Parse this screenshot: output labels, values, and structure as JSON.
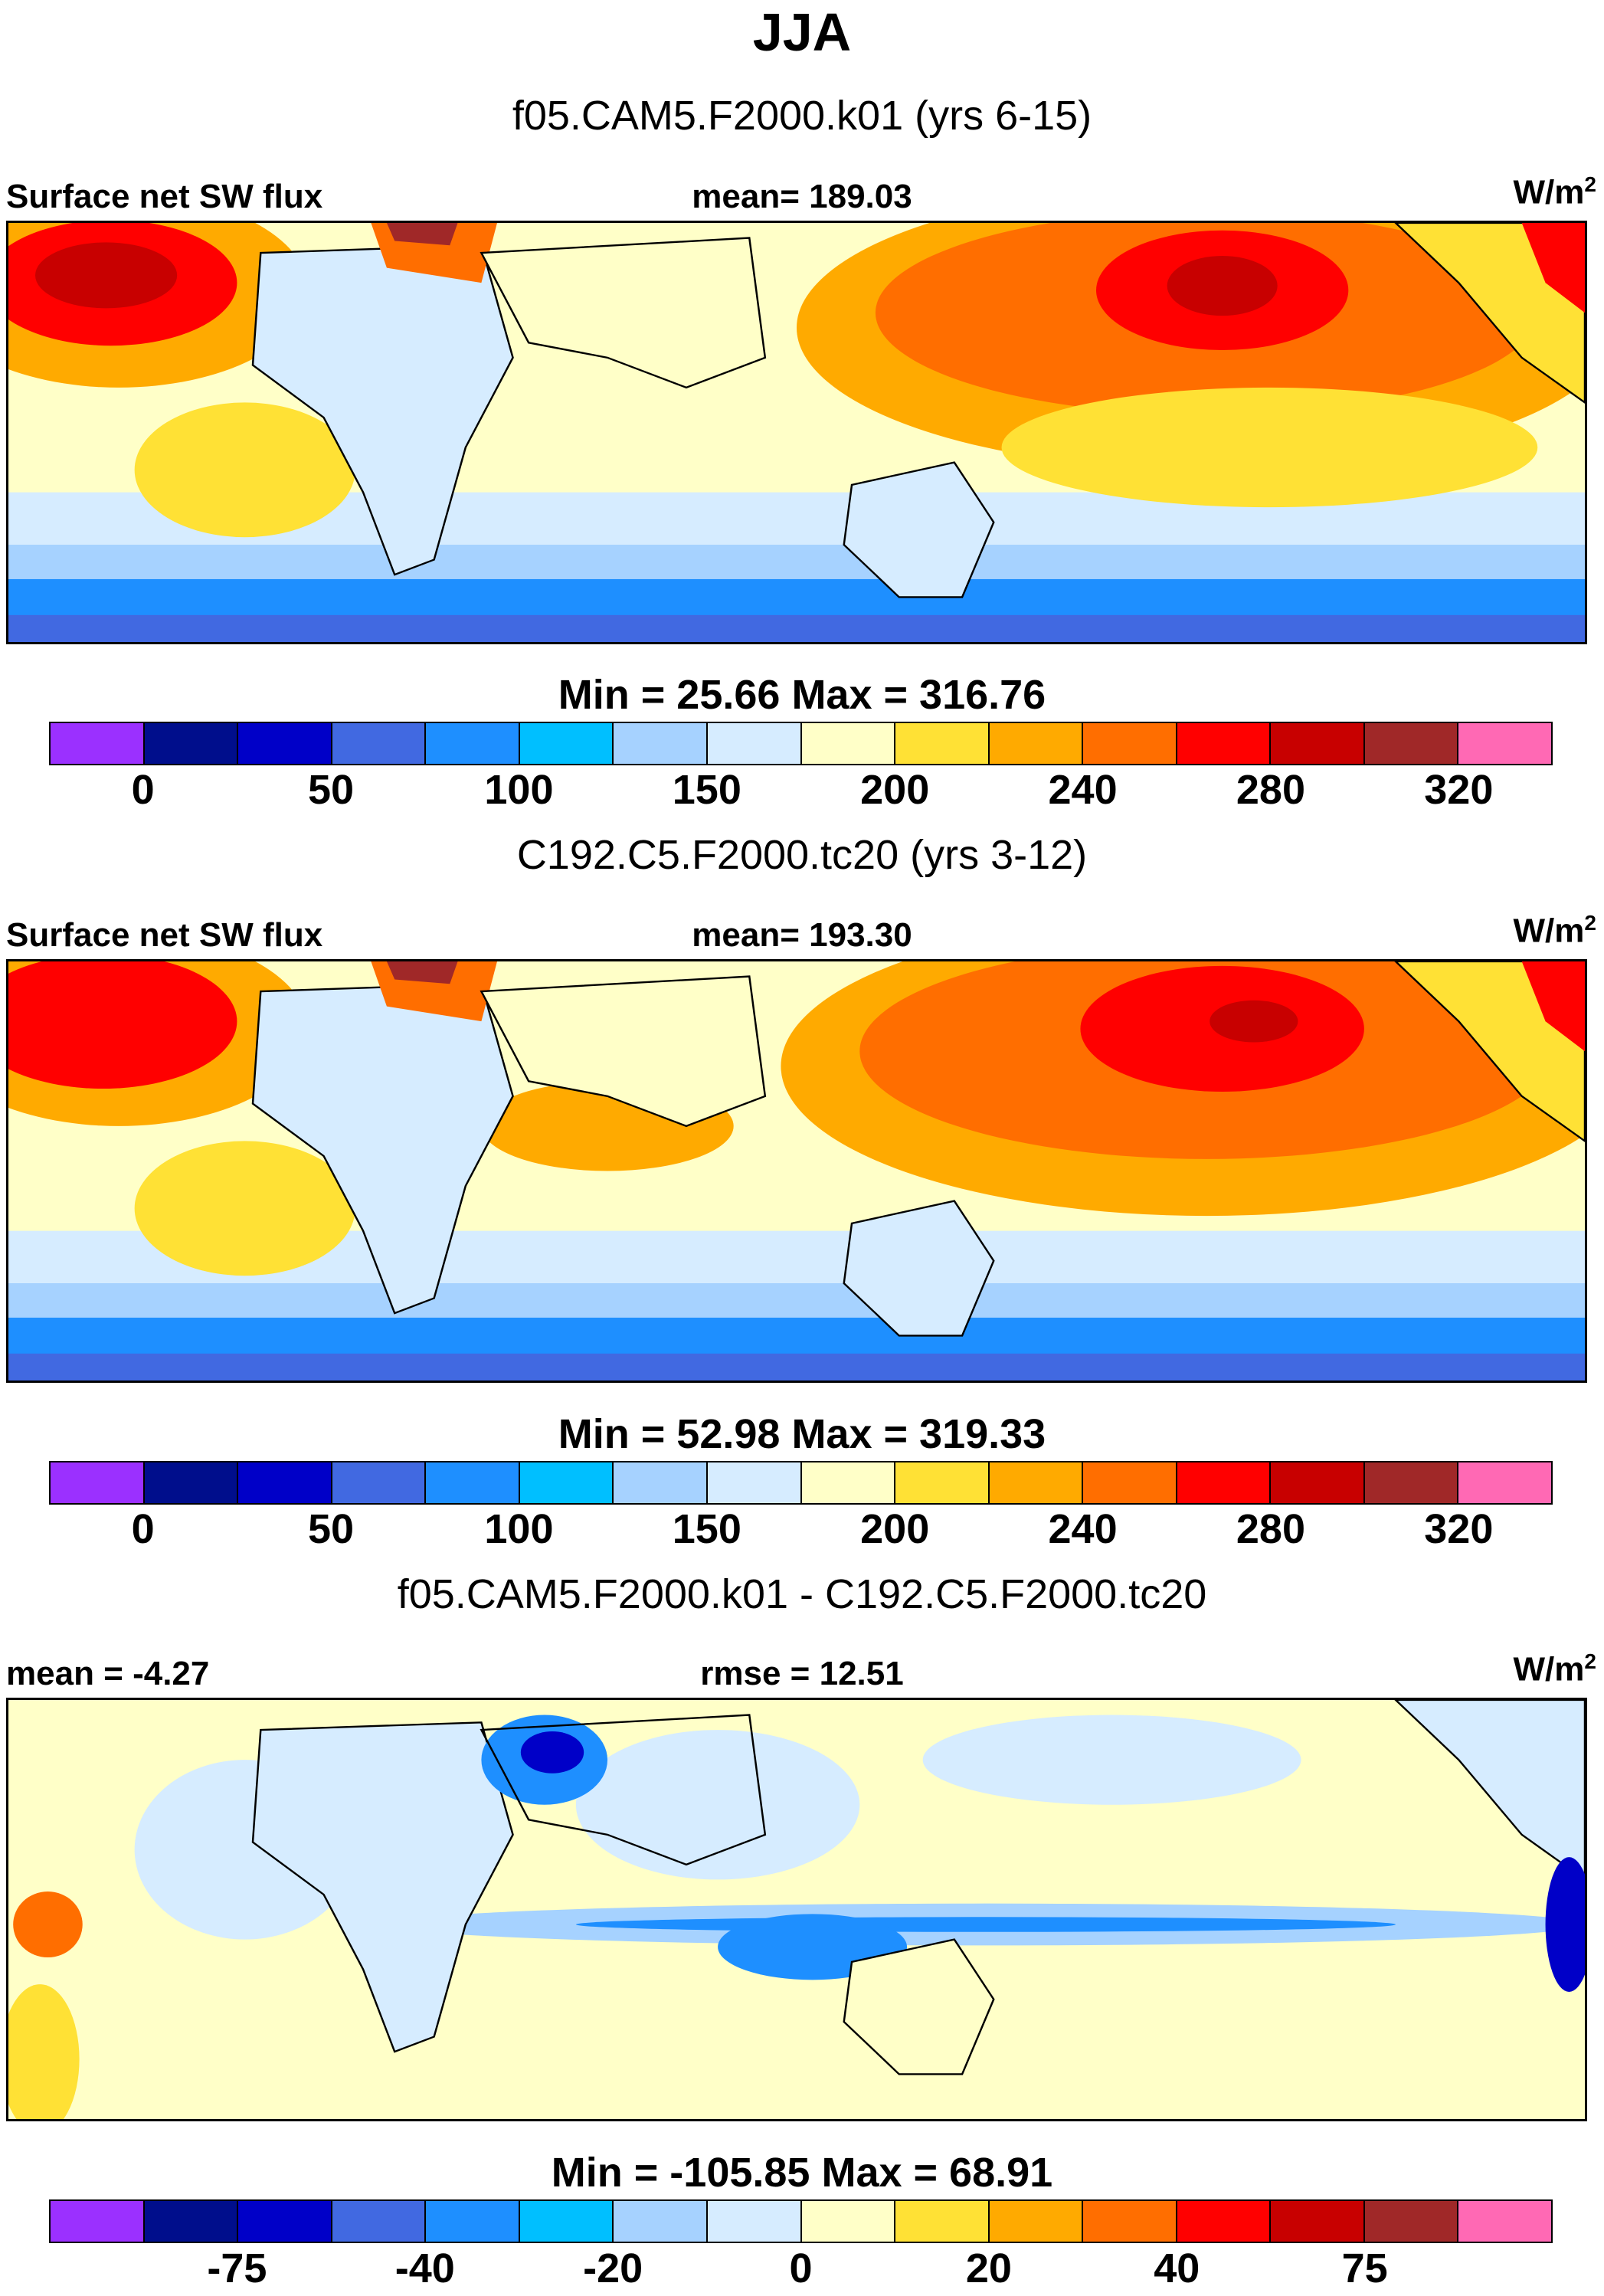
{
  "figure": {
    "season": "JJA"
  },
  "units": {
    "base": "W/m",
    "sup": "2"
  },
  "panels": [
    {
      "case": "f05.CAM5.F2000.k01 (yrs 6-15)",
      "left_label": "Surface net SW flux",
      "center_label": "mean= 189.03",
      "minmax": "Min =  25.66 Max = 316.76",
      "ticks": [
        "0",
        "50",
        "100",
        "150",
        "200",
        "240",
        "280",
        "320"
      ]
    },
    {
      "case": "C192.C5.F2000.tc20 (yrs 3-12)",
      "left_label": "Surface net SW flux",
      "center_label": "mean= 193.30",
      "minmax": "Min =  52.98 Max = 319.33",
      "ticks": [
        "0",
        "50",
        "100",
        "150",
        "200",
        "240",
        "280",
        "320"
      ]
    },
    {
      "case": "f05.CAM5.F2000.k01 - C192.C5.F2000.tc20",
      "left_label": "mean =  -4.27",
      "center_label": "rmse =  12.51",
      "minmax": "Min = -105.85 Max =  68.91",
      "ticks": [
        "-75",
        "-40",
        "-20",
        "0",
        "20",
        "40",
        "75"
      ]
    }
  ],
  "colormap": [
    "#9b30ff",
    "#000e8c",
    "#0000c8",
    "#4169e1",
    "#1e8fff",
    "#00bfff",
    "#a6d2ff",
    "#d6ecff",
    "#ffffc8",
    "#ffe135",
    "#ffaa00",
    "#ff6e00",
    "#ff0000",
    "#c80000",
    "#a02828",
    "#ff69b4"
  ]
}
